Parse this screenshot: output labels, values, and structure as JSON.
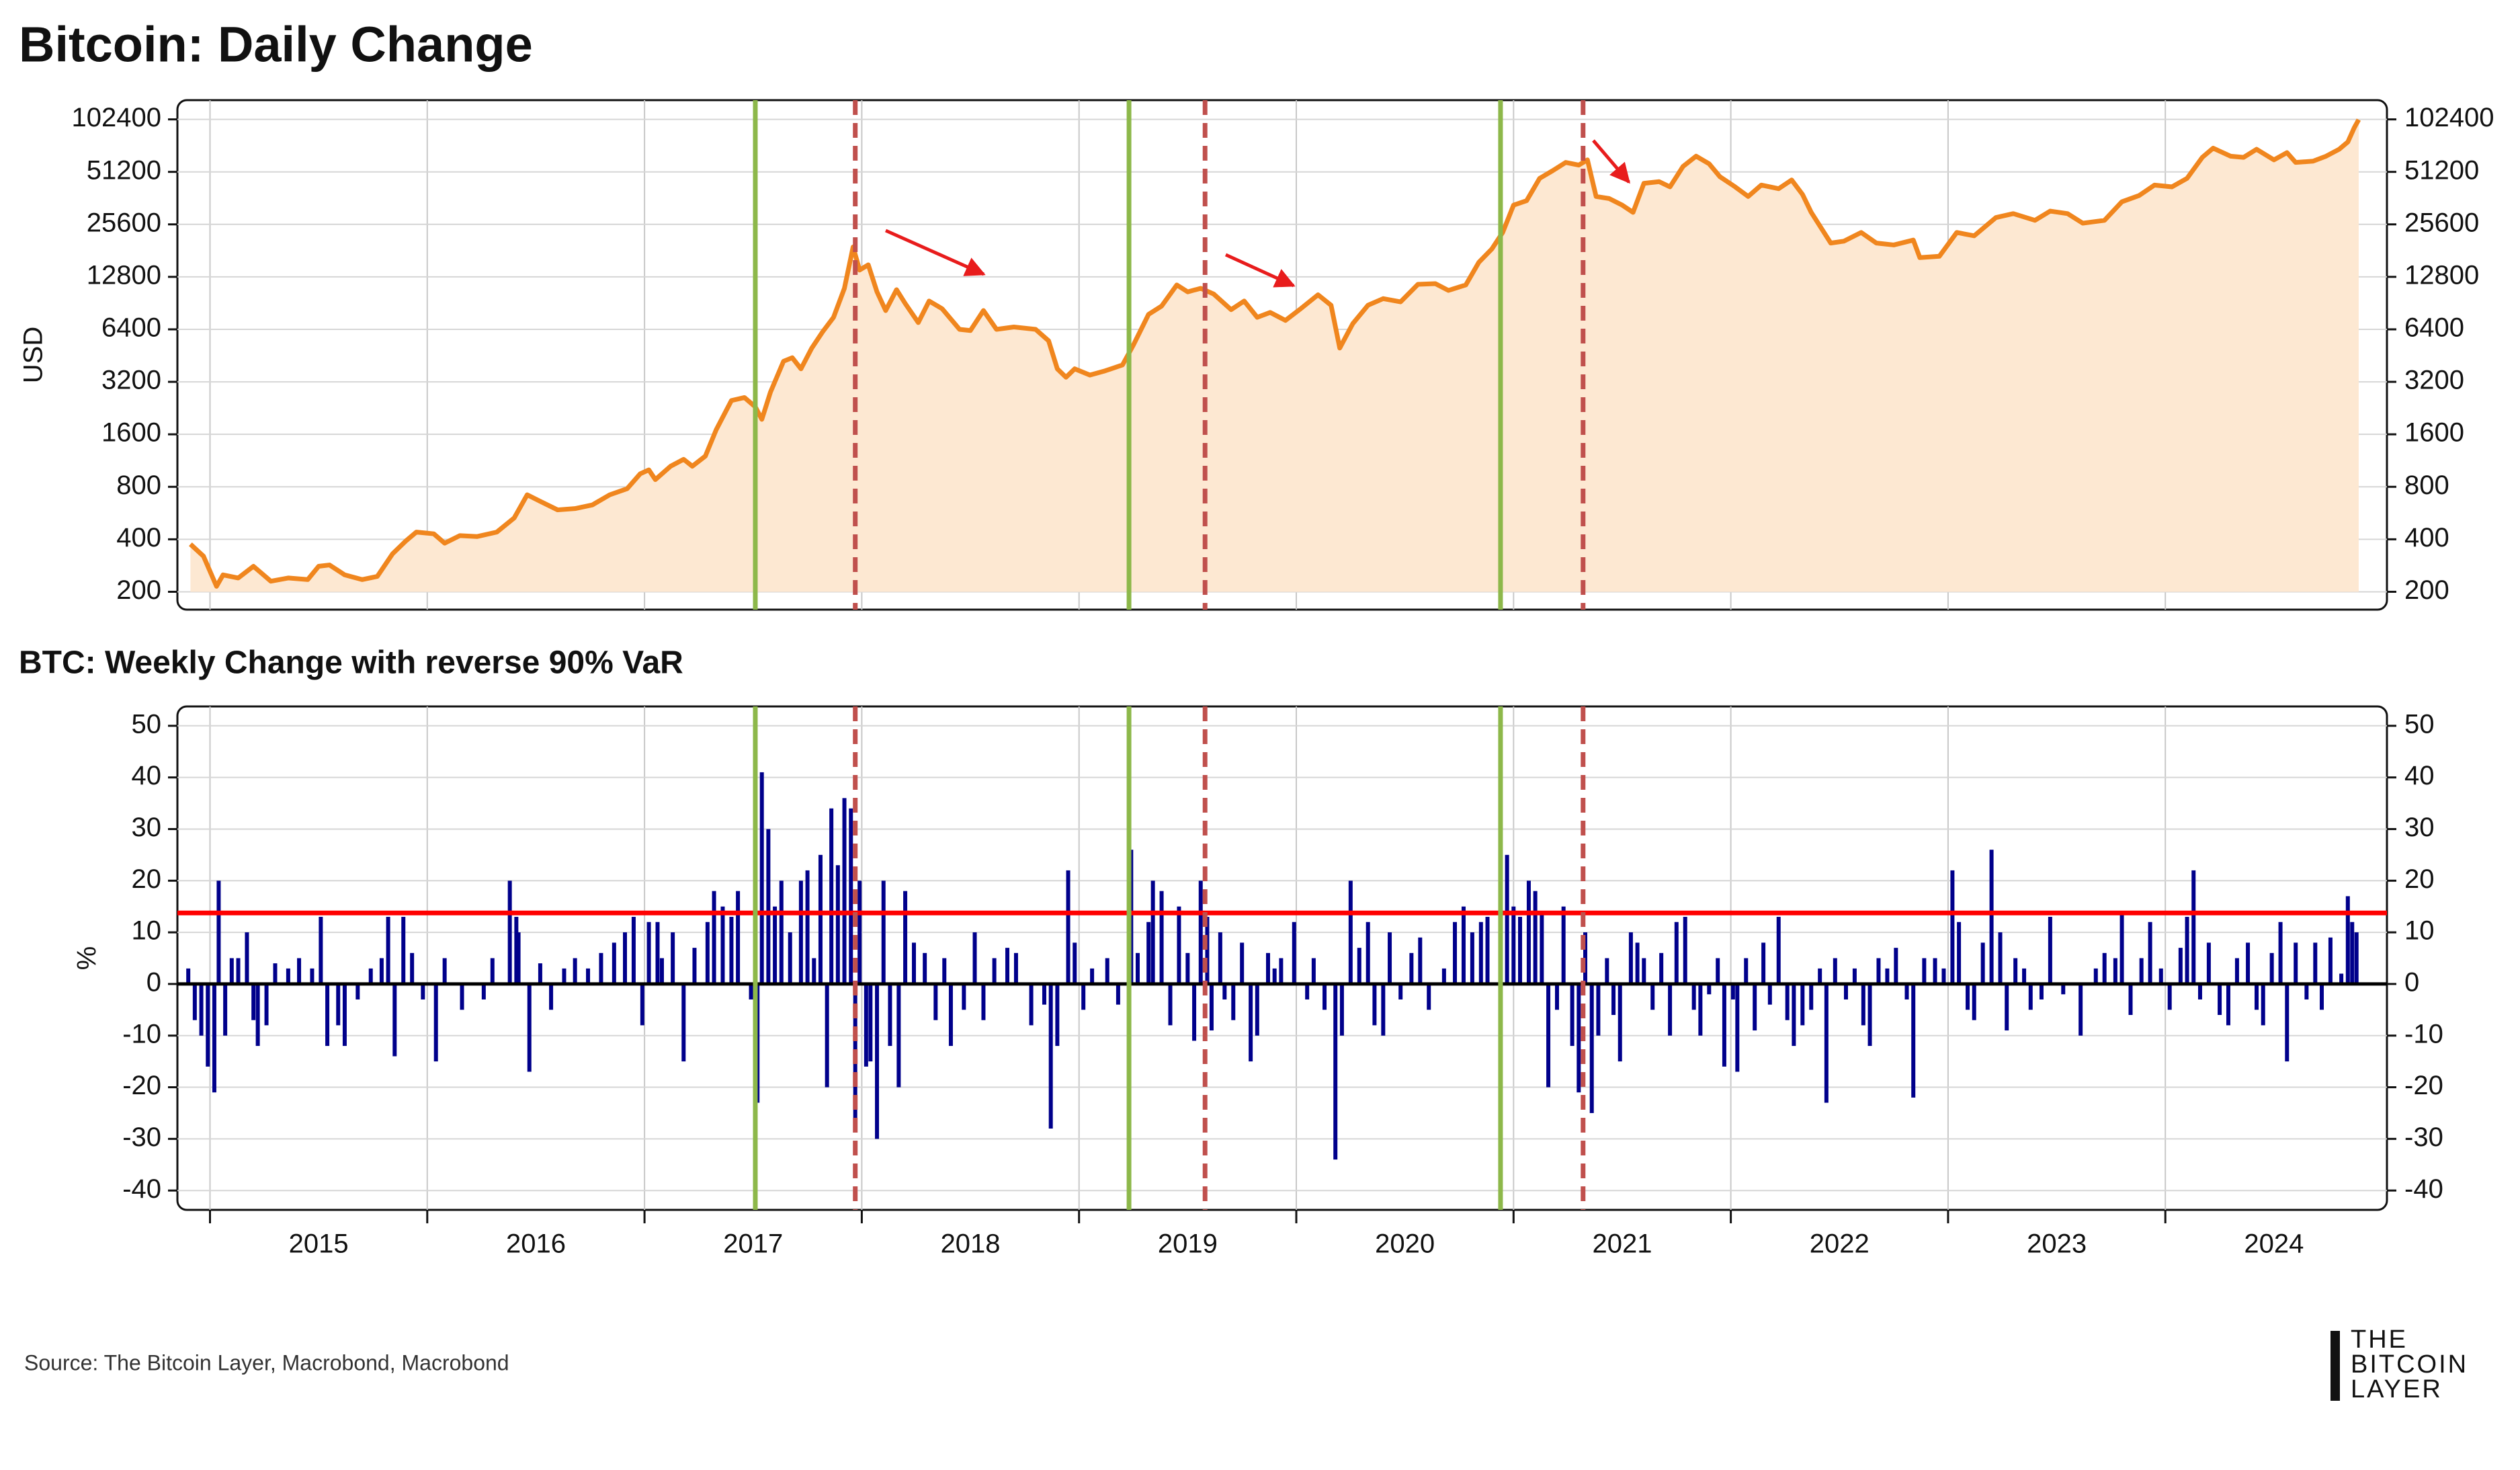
{
  "chart_data": [
    {
      "type": "line",
      "title": "Bitcoin: Daily Change",
      "y_label": "USD",
      "log_scale": true,
      "color": "#f0861e",
      "fill": "#fde8d2",
      "xlim": [
        2014.85,
        2025.02
      ],
      "xticks": [
        2015,
        2016,
        2017,
        2018,
        2019,
        2020,
        2021,
        2022,
        2023,
        2024
      ],
      "ylim": [
        158,
        132000
      ],
      "yticks": [
        200,
        400,
        800,
        1600,
        3200,
        6400,
        12800,
        25600,
        51200,
        102400
      ],
      "grid": true,
      "x": [
        2014.91,
        2014.97,
        2015.03,
        2015.06,
        2015.13,
        2015.2,
        2015.28,
        2015.36,
        2015.45,
        2015.5,
        2015.55,
        2015.62,
        2015.7,
        2015.77,
        2015.84,
        2015.9,
        2015.95,
        2016.03,
        2016.08,
        2016.15,
        2016.23,
        2016.32,
        2016.4,
        2016.46,
        2016.52,
        2016.6,
        2016.68,
        2016.76,
        2016.84,
        2016.92,
        2016.98,
        2017.02,
        2017.05,
        2017.12,
        2017.18,
        2017.22,
        2017.28,
        2017.33,
        2017.4,
        2017.46,
        2017.51,
        2017.54,
        2017.58,
        2017.64,
        2017.68,
        2017.72,
        2017.77,
        2017.82,
        2017.87,
        2017.92,
        2017.96,
        2017.99,
        2018.03,
        2018.07,
        2018.11,
        2018.16,
        2018.2,
        2018.26,
        2018.31,
        2018.37,
        2018.45,
        2018.5,
        2018.56,
        2018.62,
        2018.7,
        2018.8,
        2018.86,
        2018.9,
        2018.94,
        2018.98,
        2019.05,
        2019.12,
        2019.2,
        2019.25,
        2019.32,
        2019.38,
        2019.45,
        2019.5,
        2019.56,
        2019.62,
        2019.7,
        2019.76,
        2019.82,
        2019.88,
        2019.95,
        2020.02,
        2020.1,
        2020.16,
        2020.2,
        2020.26,
        2020.33,
        2020.4,
        2020.48,
        2020.56,
        2020.64,
        2020.7,
        2020.78,
        2020.84,
        2020.9,
        2020.95,
        2021.0,
        2021.06,
        2021.12,
        2021.18,
        2021.24,
        2021.3,
        2021.34,
        2021.38,
        2021.44,
        2021.5,
        2021.55,
        2021.6,
        2021.67,
        2021.72,
        2021.78,
        2021.84,
        2021.9,
        2021.95,
        2022.02,
        2022.08,
        2022.14,
        2022.22,
        2022.28,
        2022.33,
        2022.37,
        2022.46,
        2022.52,
        2022.6,
        2022.67,
        2022.75,
        2022.84,
        2022.87,
        2022.96,
        2023.04,
        2023.12,
        2023.22,
        2023.3,
        2023.4,
        2023.47,
        2023.55,
        2023.62,
        2023.72,
        2023.8,
        2023.88,
        2023.95,
        2024.03,
        2024.1,
        2024.17,
        2024.22,
        2024.3,
        2024.36,
        2024.42,
        2024.5,
        2024.56,
        2024.6,
        2024.68,
        2024.74,
        2024.8,
        2024.84,
        2024.87,
        2024.89
      ],
      "values": [
        375,
        320,
        215,
        250,
        240,
        280,
        230,
        240,
        235,
        280,
        285,
        250,
        235,
        245,
        330,
        390,
        440,
        430,
        380,
        420,
        415,
        440,
        530,
        720,
        660,
        590,
        600,
        630,
        720,
        780,
        950,
        1000,
        880,
        1050,
        1150,
        1050,
        1200,
        1700,
        2500,
        2600,
        2300,
        1950,
        2800,
        4200,
        4400,
        3800,
        5000,
        6200,
        7500,
        11000,
        19000,
        14000,
        15000,
        10500,
        8200,
        10800,
        9000,
        7000,
        9300,
        8400,
        6400,
        6300,
        8200,
        6400,
        6600,
        6400,
        5500,
        3800,
        3400,
        3800,
        3500,
        3700,
        4000,
        5200,
        7800,
        8700,
        11500,
        10500,
        11000,
        10200,
        8300,
        9300,
        7500,
        8000,
        7200,
        8400,
        10100,
        8800,
        5000,
        6900,
        8800,
        9600,
        9200,
        11600,
        11700,
        10700,
        11500,
        15500,
        18500,
        23000,
        33000,
        35000,
        47000,
        52000,
        58000,
        56000,
        60000,
        37000,
        36000,
        33000,
        30000,
        44000,
        45000,
        42000,
        55000,
        63000,
        57000,
        48000,
        42000,
        37000,
        43000,
        41000,
        46000,
        38000,
        30000,
        20000,
        20500,
        23000,
        20000,
        19500,
        20800,
        16500,
        16800,
        23000,
        22000,
        28000,
        29500,
        27000,
        30500,
        29500,
        26000,
        27000,
        34500,
        37500,
        43000,
        42000,
        47000,
        62000,
        70000,
        63000,
        62000,
        69000,
        60000,
        66000,
        58000,
        59000,
        63000,
        69000,
        76000,
        92000,
        102000
      ]
    },
    {
      "type": "bar",
      "title": "BTC: Weekly Change with reverse 90% VaR",
      "y_label": "%",
      "color": "#00008b",
      "xlim": [
        2014.85,
        2025.02
      ],
      "xticks": [
        2015,
        2016,
        2017,
        2018,
        2019,
        2020,
        2021,
        2022,
        2023,
        2024
      ],
      "ylim": [
        -43.75,
        53.75
      ],
      "yticks": [
        -40,
        -30,
        -20,
        -10,
        0,
        10,
        20,
        30,
        40,
        50
      ],
      "grid": true,
      "reference_line": {
        "value": 13.75,
        "color": "#ff0000"
      },
      "x": [
        2014.9,
        2014.93,
        2014.96,
        2014.99,
        2015.02,
        2015.04,
        2015.07,
        2015.1,
        2015.13,
        2015.17,
        2015.2,
        2015.22,
        2015.26,
        2015.3,
        2015.36,
        2015.41,
        2015.47,
        2015.51,
        2015.54,
        2015.59,
        2015.62,
        2015.68,
        2015.74,
        2015.79,
        2015.82,
        2015.85,
        2015.89,
        2015.93,
        2015.98,
        2016.04,
        2016.08,
        2016.16,
        2016.26,
        2016.3,
        2016.38,
        2016.41,
        2016.42,
        2016.47,
        2016.52,
        2016.57,
        2016.63,
        2016.68,
        2016.74,
        2016.8,
        2016.86,
        2016.91,
        2016.95,
        2016.99,
        2017.02,
        2017.06,
        2017.08,
        2017.13,
        2017.18,
        2017.23,
        2017.29,
        2017.32,
        2017.36,
        2017.4,
        2017.43,
        2017.49,
        2017.52,
        2017.54,
        2017.57,
        2017.6,
        2017.63,
        2017.67,
        2017.72,
        2017.75,
        2017.78,
        2017.81,
        2017.84,
        2017.86,
        2017.89,
        2017.92,
        2017.95,
        2017.97,
        2017.99,
        2018.02,
        2018.04,
        2018.07,
        2018.1,
        2018.13,
        2018.17,
        2018.2,
        2018.24,
        2018.29,
        2018.34,
        2018.38,
        2018.41,
        2018.47,
        2018.52,
        2018.56,
        2018.61,
        2018.67,
        2018.71,
        2018.78,
        2018.84,
        2018.87,
        2018.9,
        2018.95,
        2018.98,
        2019.02,
        2019.06,
        2019.13,
        2019.18,
        2019.24,
        2019.27,
        2019.32,
        2019.34,
        2019.38,
        2019.42,
        2019.46,
        2019.5,
        2019.53,
        2019.56,
        2019.59,
        2019.61,
        2019.65,
        2019.67,
        2019.71,
        2019.75,
        2019.79,
        2019.82,
        2019.87,
        2019.9,
        2019.93,
        2019.99,
        2020.05,
        2020.08,
        2020.13,
        2020.18,
        2020.21,
        2020.25,
        2020.29,
        2020.33,
        2020.36,
        2020.4,
        2020.43,
        2020.48,
        2020.53,
        2020.57,
        2020.61,
        2020.68,
        2020.73,
        2020.77,
        2020.81,
        2020.85,
        2020.88,
        2020.94,
        2020.97,
        2021.0,
        2021.03,
        2021.07,
        2021.1,
        2021.13,
        2021.16,
        2021.2,
        2021.23,
        2021.27,
        2021.3,
        2021.33,
        2021.36,
        2021.39,
        2021.43,
        2021.46,
        2021.49,
        2021.54,
        2021.57,
        2021.6,
        2021.64,
        2021.68,
        2021.72,
        2021.75,
        2021.79,
        2021.83,
        2021.86,
        2021.9,
        2021.94,
        2021.97,
        2022.01,
        2022.03,
        2022.07,
        2022.11,
        2022.15,
        2022.18,
        2022.22,
        2022.26,
        2022.29,
        2022.33,
        2022.37,
        2022.41,
        2022.44,
        2022.48,
        2022.53,
        2022.57,
        2022.61,
        2022.64,
        2022.68,
        2022.72,
        2022.76,
        2022.81,
        2022.84,
        2022.89,
        2022.94,
        2022.98,
        2023.02,
        2023.05,
        2023.09,
        2023.12,
        2023.16,
        2023.2,
        2023.24,
        2023.27,
        2023.31,
        2023.35,
        2023.38,
        2023.43,
        2023.47,
        2023.53,
        2023.61,
        2023.68,
        2023.72,
        2023.77,
        2023.8,
        2023.84,
        2023.89,
        2023.93,
        2023.98,
        2024.02,
        2024.07,
        2024.1,
        2024.13,
        2024.16,
        2024.2,
        2024.25,
        2024.29,
        2024.33,
        2024.38,
        2024.42,
        2024.45,
        2024.49,
        2024.53,
        2024.56,
        2024.6,
        2024.65,
        2024.69,
        2024.72,
        2024.76,
        2024.81,
        2024.84,
        2024.86,
        2024.88
      ],
      "values": [
        3,
        -7,
        -10,
        -16,
        -21,
        20,
        -10,
        5,
        5,
        10,
        -7,
        -12,
        -8,
        4,
        3,
        5,
        3,
        13,
        -12,
        -8,
        -12,
        -3,
        3,
        5,
        13,
        -14,
        13,
        6,
        -3,
        -15,
        5,
        -5,
        -3,
        5,
        20,
        13,
        10,
        -17,
        4,
        -5,
        3,
        5,
        3,
        6,
        8,
        10,
        13,
        -8,
        12,
        12,
        5,
        10,
        -15,
        7,
        12,
        18,
        15,
        13,
        18,
        -3,
        -23,
        41,
        30,
        15,
        20,
        10,
        20,
        22,
        5,
        25,
        -20,
        34,
        23,
        36,
        34,
        -27,
        20,
        -16,
        -15,
        -30,
        20,
        -12,
        -20,
        18,
        8,
        6,
        -7,
        5,
        -12,
        -5,
        10,
        -7,
        5,
        7,
        6,
        -8,
        -4,
        -28,
        -12,
        22,
        8,
        -5,
        3,
        5,
        -4,
        26,
        6,
        12,
        20,
        18,
        -8,
        15,
        6,
        -11,
        20,
        13,
        -9,
        10,
        -3,
        -7,
        8,
        -15,
        -10,
        6,
        3,
        5,
        12,
        -3,
        5,
        -5,
        -34,
        -10,
        20,
        7,
        12,
        -8,
        -10,
        10,
        -3,
        6,
        9,
        -5,
        3,
        12,
        15,
        10,
        12,
        13,
        4,
        25,
        15,
        13,
        20,
        18,
        14,
        -20,
        -5,
        15,
        -12,
        -21,
        10,
        -25,
        -10,
        5,
        -6,
        -15,
        10,
        8,
        5,
        -5,
        6,
        -10,
        12,
        13,
        -5,
        -10,
        -2,
        5,
        -16,
        -3,
        -17,
        5,
        -9,
        8,
        -4,
        13,
        -7,
        -12,
        -8,
        -5,
        3,
        -23,
        5,
        -3,
        3,
        -8,
        -12,
        5,
        3,
        7,
        -3,
        -22,
        5,
        5,
        3,
        22,
        12,
        -5,
        -7,
        8,
        26,
        10,
        -9,
        5,
        3,
        -5,
        -3,
        13,
        -2,
        -10,
        3,
        6,
        5,
        14,
        -6,
        5,
        12,
        3,
        -5,
        7,
        13,
        22,
        -3,
        8,
        -6,
        -8,
        5,
        8,
        -5,
        -8,
        6,
        12,
        -15,
        8,
        -3,
        8,
        -5,
        9,
        2,
        17,
        12,
        10
      ]
    }
  ],
  "markers": [
    {
      "x": 2017.51,
      "color": "#8db84a",
      "style": "solid"
    },
    {
      "x": 2017.97,
      "color": "#c0504d",
      "style": "dashed"
    },
    {
      "x": 2019.23,
      "color": "#8db84a",
      "style": "solid"
    },
    {
      "x": 2019.58,
      "color": "#c0504d",
      "style": "dashed"
    },
    {
      "x": 2020.94,
      "color": "#8db84a",
      "style": "solid"
    },
    {
      "x": 2021.32,
      "color": "#c0504d",
      "style": "dashed"
    }
  ],
  "source": "Source: The Bitcoin Layer, Macrobond, Macrobond",
  "logo": [
    "THE",
    "BITCOIN",
    "LAYER"
  ]
}
